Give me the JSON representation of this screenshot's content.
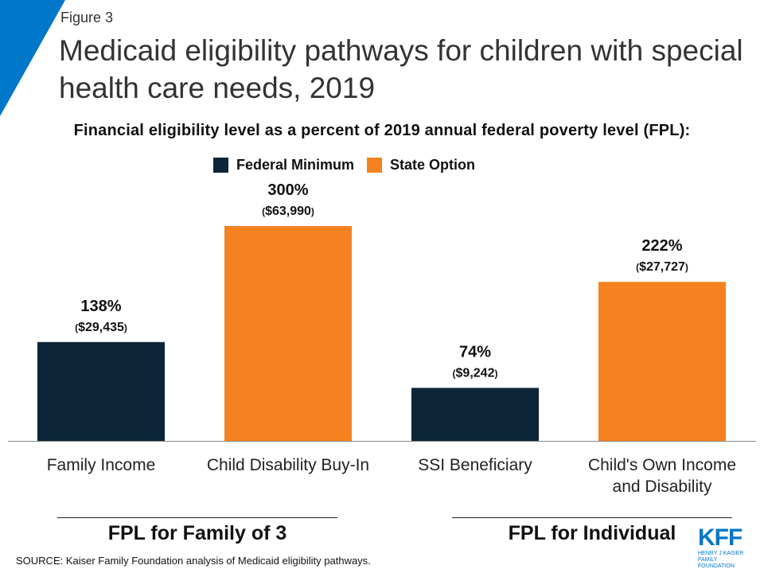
{
  "header": {
    "figure_label": "Figure 3",
    "title": "Medicaid eligibility pathways for children with special health care needs, 2019"
  },
  "chart_data": {
    "type": "bar",
    "subtitle": "Financial eligibility level as a percent of 2019 annual federal poverty level (FPL):",
    "legend": [
      {
        "name": "Federal Minimum",
        "color": "#0c2538"
      },
      {
        "name": "State Option",
        "color": "#f58220"
      }
    ],
    "categories": [
      "Family Income",
      "Child Disability Buy-In",
      "SSI Beneficiary",
      "Child's Own Income and Disability"
    ],
    "category_lines": [
      [
        "Family Income"
      ],
      [
        "Child Disability Buy-In"
      ],
      [
        "SSI Beneficiary"
      ],
      [
        "Child's Own Income",
        "and Disability"
      ]
    ],
    "values": [
      138,
      300,
      74,
      222
    ],
    "value_labels": [
      "138%",
      "300%",
      "74%",
      "222%"
    ],
    "dollar_labels": [
      "$29,435",
      "$63,990",
      "$9,242",
      "$27,727"
    ],
    "bar_types": [
      "Federal Minimum",
      "State Option",
      "Federal Minimum",
      "State Option"
    ],
    "ylim": [
      0,
      300
    ],
    "groups": [
      {
        "label": "FPL for Family of 3",
        "categories": [
          0,
          1
        ]
      },
      {
        "label": "FPL for Individual",
        "categories": [
          2,
          3
        ]
      }
    ]
  },
  "footer": {
    "source": "SOURCE:  Kaiser Family Foundation analysis of Medicaid eligibility pathways.",
    "logo_text": "KFF",
    "logo_sub_1": "HENRY J KAISER",
    "logo_sub_2": "FAMILY FOUNDATION"
  },
  "colors": {
    "accent_blue": "#0077c8",
    "federal_minimum": "#0c2538",
    "state_option": "#f58220"
  }
}
